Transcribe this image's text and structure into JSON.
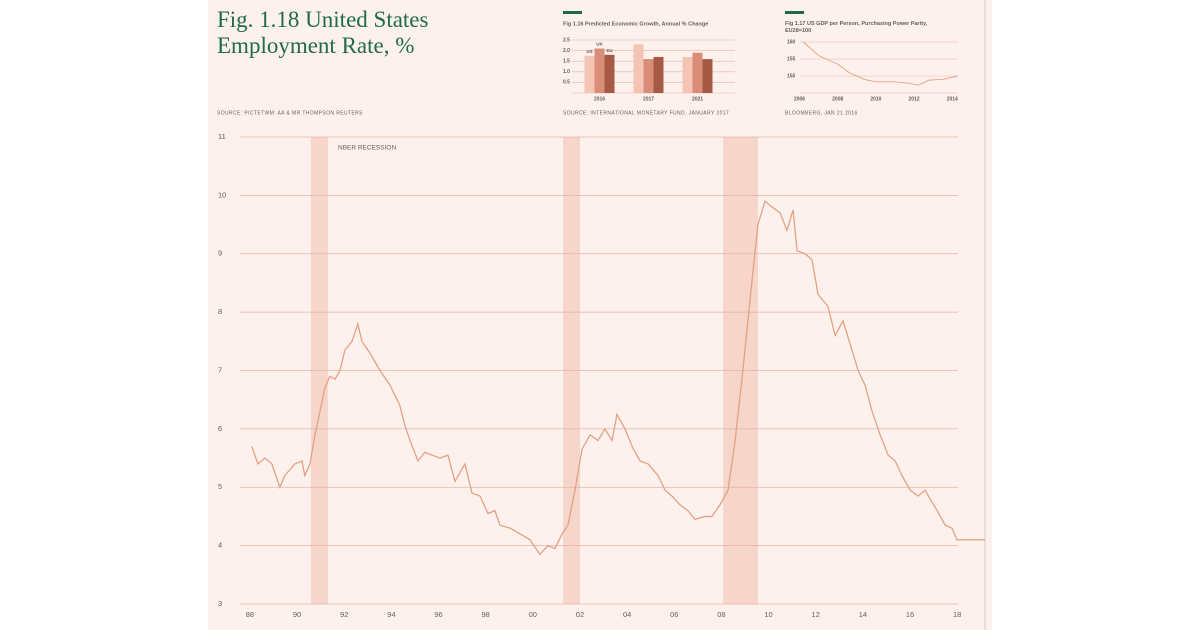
{
  "chart_data": [
    {
      "type": "line",
      "title": "Fig. 1.18 United States\nEmployment Rate, %",
      "source": "SOURCE: PICTETWM: AA & MR THOMPSON REUTERS",
      "annotation": "NBER RECESSION",
      "color": "#e3a283",
      "recession_color": "#f6d6ca",
      "grid": true,
      "xlim": [
        1987.58,
        2019.18
      ],
      "ylim": [
        3,
        11
      ],
      "yticks": [
        3,
        4,
        5,
        6,
        7,
        8,
        9,
        10,
        11
      ],
      "xticks": [
        {
          "value": 1988,
          "label": "88"
        },
        {
          "value": 1990,
          "label": "90"
        },
        {
          "value": 1992,
          "label": "92"
        },
        {
          "value": 1994,
          "label": "94"
        },
        {
          "value": 1996,
          "label": "96"
        },
        {
          "value": 1998,
          "label": "98"
        },
        {
          "value": 2000,
          "label": "00"
        },
        {
          "value": 2002,
          "label": "02"
        },
        {
          "value": 2004,
          "label": "04"
        },
        {
          "value": 2006,
          "label": "06"
        },
        {
          "value": 2008,
          "label": "08"
        },
        {
          "value": 2010,
          "label": "10"
        },
        {
          "value": 2012,
          "label": "12"
        },
        {
          "value": 2014,
          "label": "14"
        },
        {
          "value": 2016,
          "label": "16"
        },
        {
          "value": 2018,
          "label": "18"
        }
      ],
      "recessions": [
        [
          1990.59,
          1991.31
        ],
        [
          2001.28,
          2002.0
        ],
        [
          2008.07,
          2009.55
        ]
      ],
      "x": [
        1988.08,
        1988.34,
        1988.64,
        1988.93,
        1989.27,
        1989.48,
        1989.91,
        1990.21,
        1990.33,
        1990.55,
        1990.76,
        1990.97,
        1991.18,
        1991.39,
        1991.61,
        1991.82,
        1992.03,
        1992.33,
        1992.58,
        1992.75,
        1993.09,
        1993.52,
        1993.94,
        1994.36,
        1994.58,
        1994.79,
        1995.13,
        1995.42,
        1995.72,
        1996.06,
        1996.4,
        1996.7,
        1997.12,
        1997.42,
        1997.76,
        1998.1,
        1998.39,
        1998.61,
        1999.03,
        1999.46,
        1999.88,
        2000.3,
        2000.64,
        2000.94,
        2001.24,
        2001.49,
        2001.79,
        2002.09,
        2002.43,
        2002.76,
        2003.06,
        2003.36,
        2003.57,
        2003.91,
        2004.21,
        2004.55,
        2004.89,
        2005.31,
        2005.61,
        2005.9,
        2006.24,
        2006.58,
        2006.88,
        2007.3,
        2007.6,
        2007.94,
        2008.28,
        2008.58,
        2008.87,
        2009.21,
        2009.55,
        2009.85,
        2010.15,
        2010.49,
        2010.78,
        2011.04,
        2011.21,
        2011.55,
        2011.84,
        2012.1,
        2012.52,
        2012.82,
        2013.16,
        2013.46,
        2013.8,
        2014.09,
        2014.39,
        2014.73,
        2015.07,
        2015.37,
        2015.66,
        2016.0,
        2016.34,
        2016.64,
        2016.85,
        2017.15,
        2017.49,
        2017.78,
        2017.99,
        2019.18
      ],
      "values": [
        5.7,
        5.4,
        5.5,
        5.4,
        5.0,
        5.2,
        5.4,
        5.45,
        5.2,
        5.4,
        5.9,
        6.3,
        6.7,
        6.9,
        6.85,
        7.0,
        7.35,
        7.5,
        7.8,
        7.5,
        7.3,
        7.0,
        6.75,
        6.4,
        6.05,
        5.8,
        5.45,
        5.6,
        5.55,
        5.5,
        5.55,
        5.1,
        5.4,
        4.9,
        4.85,
        4.55,
        4.6,
        4.35,
        4.3,
        4.2,
        4.1,
        3.85,
        4.0,
        3.95,
        4.2,
        4.35,
        4.95,
        5.65,
        5.9,
        5.8,
        6.0,
        5.8,
        6.25,
        6.0,
        5.7,
        5.45,
        5.4,
        5.2,
        4.95,
        4.85,
        4.7,
        4.6,
        4.45,
        4.5,
        4.5,
        4.7,
        4.95,
        5.8,
        6.85,
        8.2,
        9.5,
        9.9,
        9.8,
        9.7,
        9.4,
        9.75,
        9.05,
        9.0,
        8.9,
        8.3,
        8.1,
        7.6,
        7.85,
        7.45,
        7.0,
        6.75,
        6.3,
        5.9,
        5.55,
        5.45,
        5.2,
        4.95,
        4.85,
        4.95,
        4.8,
        4.6,
        4.35,
        4.3,
        4.1,
        4.1
      ]
    },
    {
      "type": "bar",
      "title": "Fig 1.16 Predicted Economic Growth, Annual % Change",
      "source": "SOURCE: INTERNATIONAL MONETARY FUND, JANUARY 2017",
      "categories": [
        "2016",
        "2017",
        "2021"
      ],
      "ylim": [
        0,
        2.5
      ],
      "yticks": [
        {
          "value": 0.5,
          "label": "0.5"
        },
        {
          "value": 1,
          "label": "1.0"
        },
        {
          "value": 1.5,
          "label": "1.5"
        },
        {
          "value": 2,
          "label": "2.0"
        },
        {
          "value": 2.5,
          "label": "2.5"
        }
      ],
      "grid": true,
      "series": [
        {
          "name": "US",
          "color": "#f6c4b2",
          "values": [
            1.75,
            2.3,
            1.7
          ]
        },
        {
          "name": "UK",
          "color": "#d98d79",
          "values": [
            2.1,
            1.6,
            1.9
          ]
        },
        {
          "name": "EU",
          "color": "#a65a45",
          "values": [
            1.8,
            1.7,
            1.6
          ]
        }
      ]
    },
    {
      "type": "line",
      "title": "Fig 1.17 US GDP per Person, Purchasing Power Parity, EU28=100",
      "source": "BLOOMBERG, JAN 21 2016",
      "color": "#e3a283",
      "grid": true,
      "xlim": [
        2005.5,
        2014.3
      ],
      "ylim": [
        145,
        160
      ],
      "yticks": [
        150,
        155,
        160
      ],
      "xticks": [
        2006,
        2008,
        2010,
        2012,
        2014
      ],
      "x": [
        2006.2,
        2007,
        2008,
        2008.6,
        2009.4,
        2010,
        2011,
        2011.8,
        2012.2,
        2012.8,
        2013.5,
        2014.3
      ],
      "values": [
        160,
        156,
        153.5,
        151,
        149,
        148.3,
        148.3,
        147.8,
        147.3,
        148.8,
        149,
        150
      ]
    }
  ]
}
